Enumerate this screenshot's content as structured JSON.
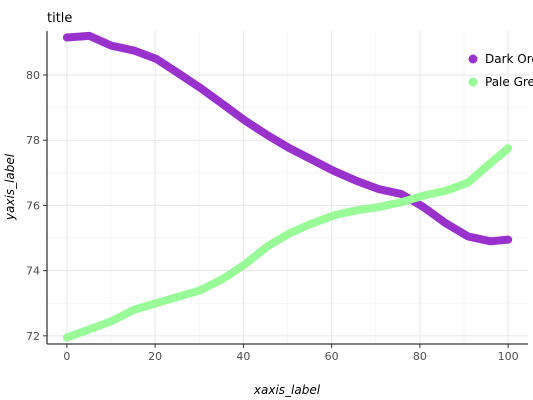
{
  "chart_data": {
    "type": "line",
    "title": "title",
    "xlabel": "xaxis_label",
    "ylabel": "yaxis_label",
    "xlim": [
      -4.5,
      104.5
    ],
    "ylim": [
      71.75,
      81.35
    ],
    "xticks": [
      0,
      20,
      40,
      60,
      80,
      100
    ],
    "yticks": [
      72,
      74,
      76,
      78,
      80
    ],
    "grid": true,
    "legend": "right",
    "series": [
      {
        "name": "Dark Orchid",
        "color": "#9932CC",
        "x": [
          0,
          5.1,
          10.1,
          15.2,
          20.2,
          25.3,
          30.3,
          35.4,
          40.4,
          45.5,
          50.5,
          55.6,
          60.6,
          65.7,
          70.7,
          75.8,
          80.8,
          85.9,
          90.9,
          96.0,
          100
        ],
        "y": [
          81.15,
          81.2,
          80.9,
          80.75,
          80.5,
          80.05,
          79.6,
          79.1,
          78.6,
          78.15,
          77.75,
          77.4,
          77.05,
          76.75,
          76.5,
          76.35,
          75.95,
          75.45,
          75.05,
          74.9,
          74.95
        ]
      },
      {
        "name": "Pale Green",
        "color": "#98FB98",
        "x": [
          0,
          5.1,
          10.1,
          15.2,
          20.2,
          25.3,
          30.3,
          35.4,
          40.4,
          45.5,
          50.5,
          55.6,
          60.6,
          65.7,
          70.7,
          75.8,
          80.8,
          85.9,
          90.9,
          96.0,
          100
        ],
        "y": [
          71.95,
          72.2,
          72.45,
          72.8,
          73.0,
          73.2,
          73.4,
          73.75,
          74.2,
          74.75,
          75.15,
          75.45,
          75.7,
          75.85,
          75.95,
          76.1,
          76.3,
          76.45,
          76.7,
          77.3,
          77.75
        ]
      }
    ]
  }
}
